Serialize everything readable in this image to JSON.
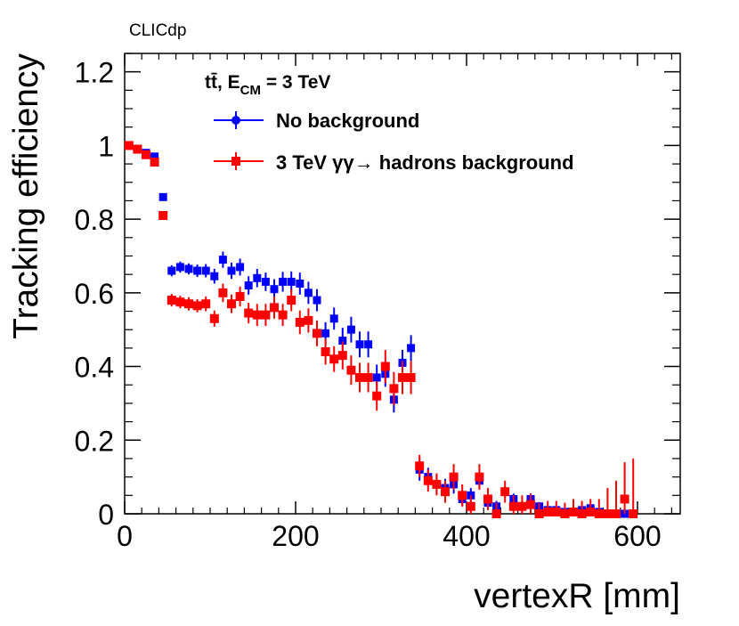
{
  "chart_data": {
    "type": "scatter",
    "watermark": "CLICdp",
    "xlabel": "vertexR [mm]",
    "ylabel": "Tracking efficiency",
    "xlim": [
      0,
      650
    ],
    "ylim": [
      0,
      1.25
    ],
    "xticks": [
      0,
      200,
      400,
      600
    ],
    "xtick_labels": [
      "0",
      "200",
      "400",
      "600"
    ],
    "yticks": [
      0,
      0.2,
      0.4,
      0.6,
      0.8,
      1.0,
      1.2
    ],
    "ytick_labels": [
      "0",
      "0.2",
      "0.4",
      "0.6",
      "0.8",
      "1",
      "1.2"
    ],
    "legend": {
      "title_main": "tt̄, E",
      "title_sub": "CM",
      "title_tail": " = 3 TeV",
      "position": "top-center"
    },
    "series": [
      {
        "name": "No background",
        "color": "#0000ff",
        "x": [
          5,
          15,
          25,
          35,
          45,
          55,
          65,
          75,
          85,
          95,
          105,
          115,
          125,
          135,
          145,
          155,
          165,
          175,
          185,
          195,
          205,
          215,
          225,
          235,
          245,
          255,
          265,
          275,
          285,
          295,
          305,
          315,
          325,
          335,
          345,
          355,
          365,
          375,
          385,
          395,
          405,
          415,
          425,
          435,
          445,
          455,
          465,
          475,
          485,
          495,
          505,
          515,
          525,
          535,
          545,
          555,
          565,
          575,
          585,
          595
        ],
        "y": [
          1.0,
          0.99,
          0.98,
          0.97,
          0.86,
          0.66,
          0.67,
          0.665,
          0.66,
          0.66,
          0.645,
          0.69,
          0.66,
          0.67,
          0.62,
          0.64,
          0.63,
          0.61,
          0.63,
          0.63,
          0.625,
          0.6,
          0.58,
          0.49,
          0.53,
          0.47,
          0.5,
          0.46,
          0.46,
          0.37,
          0.38,
          0.31,
          0.41,
          0.45,
          0.12,
          0.1,
          0.08,
          0.07,
          0.08,
          0.04,
          0.05,
          0.09,
          0.03,
          0.02,
          0.06,
          0.04,
          0.02,
          0.04,
          0.02,
          0.01,
          0.01,
          0.005,
          0.005,
          0.01,
          0.015,
          0.005,
          0.0,
          0.0,
          0.0,
          0.0
        ],
        "err": [
          0.005,
          0.007,
          0.008,
          0.008,
          0.01,
          0.015,
          0.015,
          0.015,
          0.017,
          0.018,
          0.02,
          0.022,
          0.022,
          0.023,
          0.025,
          0.025,
          0.025,
          0.027,
          0.027,
          0.028,
          0.03,
          0.03,
          0.03,
          0.03,
          0.03,
          0.035,
          0.035,
          0.035,
          0.035,
          0.035,
          0.035,
          0.035,
          0.035,
          0.035,
          0.03,
          0.025,
          0.025,
          0.025,
          0.025,
          0.02,
          0.02,
          0.02,
          0.015,
          0.015,
          0.015,
          0.015,
          0.015,
          0.015,
          0.012,
          0.01,
          0.01,
          0.008,
          0.008,
          0.01,
          0.01,
          0.01,
          0.008,
          0.008,
          0.008,
          0.008
        ]
      },
      {
        "name": "3 TeV γγ→ hadrons background",
        "color": "#ff0000",
        "x": [
          5,
          15,
          25,
          35,
          45,
          55,
          65,
          75,
          85,
          95,
          105,
          115,
          125,
          135,
          145,
          155,
          165,
          175,
          185,
          195,
          205,
          215,
          225,
          235,
          245,
          255,
          265,
          275,
          285,
          295,
          305,
          315,
          325,
          335,
          345,
          355,
          365,
          375,
          385,
          395,
          405,
          415,
          425,
          435,
          445,
          455,
          465,
          475,
          485,
          495,
          505,
          515,
          525,
          535,
          545,
          555,
          565,
          575,
          585,
          595
        ],
        "y": [
          1.0,
          0.99,
          0.975,
          0.955,
          0.81,
          0.58,
          0.575,
          0.57,
          0.565,
          0.57,
          0.53,
          0.6,
          0.57,
          0.59,
          0.545,
          0.54,
          0.54,
          0.56,
          0.54,
          0.58,
          0.52,
          0.525,
          0.49,
          0.44,
          0.42,
          0.43,
          0.39,
          0.37,
          0.37,
          0.32,
          0.4,
          0.34,
          0.37,
          0.37,
          0.13,
          0.09,
          0.08,
          0.06,
          0.1,
          0.05,
          0.02,
          0.1,
          0.04,
          0.0,
          0.06,
          0.02,
          0.02,
          0.025,
          0.0,
          0.005,
          0.005,
          0.0,
          0.005,
          0.0,
          0.005,
          0.0,
          0.0,
          0.0,
          0.04,
          0.0
        ],
        "err": [
          0.005,
          0.007,
          0.008,
          0.01,
          0.012,
          0.017,
          0.017,
          0.018,
          0.018,
          0.02,
          0.022,
          0.025,
          0.025,
          0.027,
          0.028,
          0.03,
          0.03,
          0.03,
          0.03,
          0.03,
          0.032,
          0.033,
          0.035,
          0.035,
          0.035,
          0.038,
          0.04,
          0.04,
          0.04,
          0.04,
          0.045,
          0.045,
          0.045,
          0.045,
          0.03,
          0.03,
          0.03,
          0.03,
          0.035,
          0.03,
          0.03,
          0.035,
          0.03,
          0.03,
          0.03,
          0.03,
          0.03,
          0.03,
          0.03,
          0.03,
          0.03,
          0.03,
          0.035,
          0.035,
          0.035,
          0.04,
          0.07,
          0.09,
          0.1,
          0.15
        ]
      }
    ]
  }
}
